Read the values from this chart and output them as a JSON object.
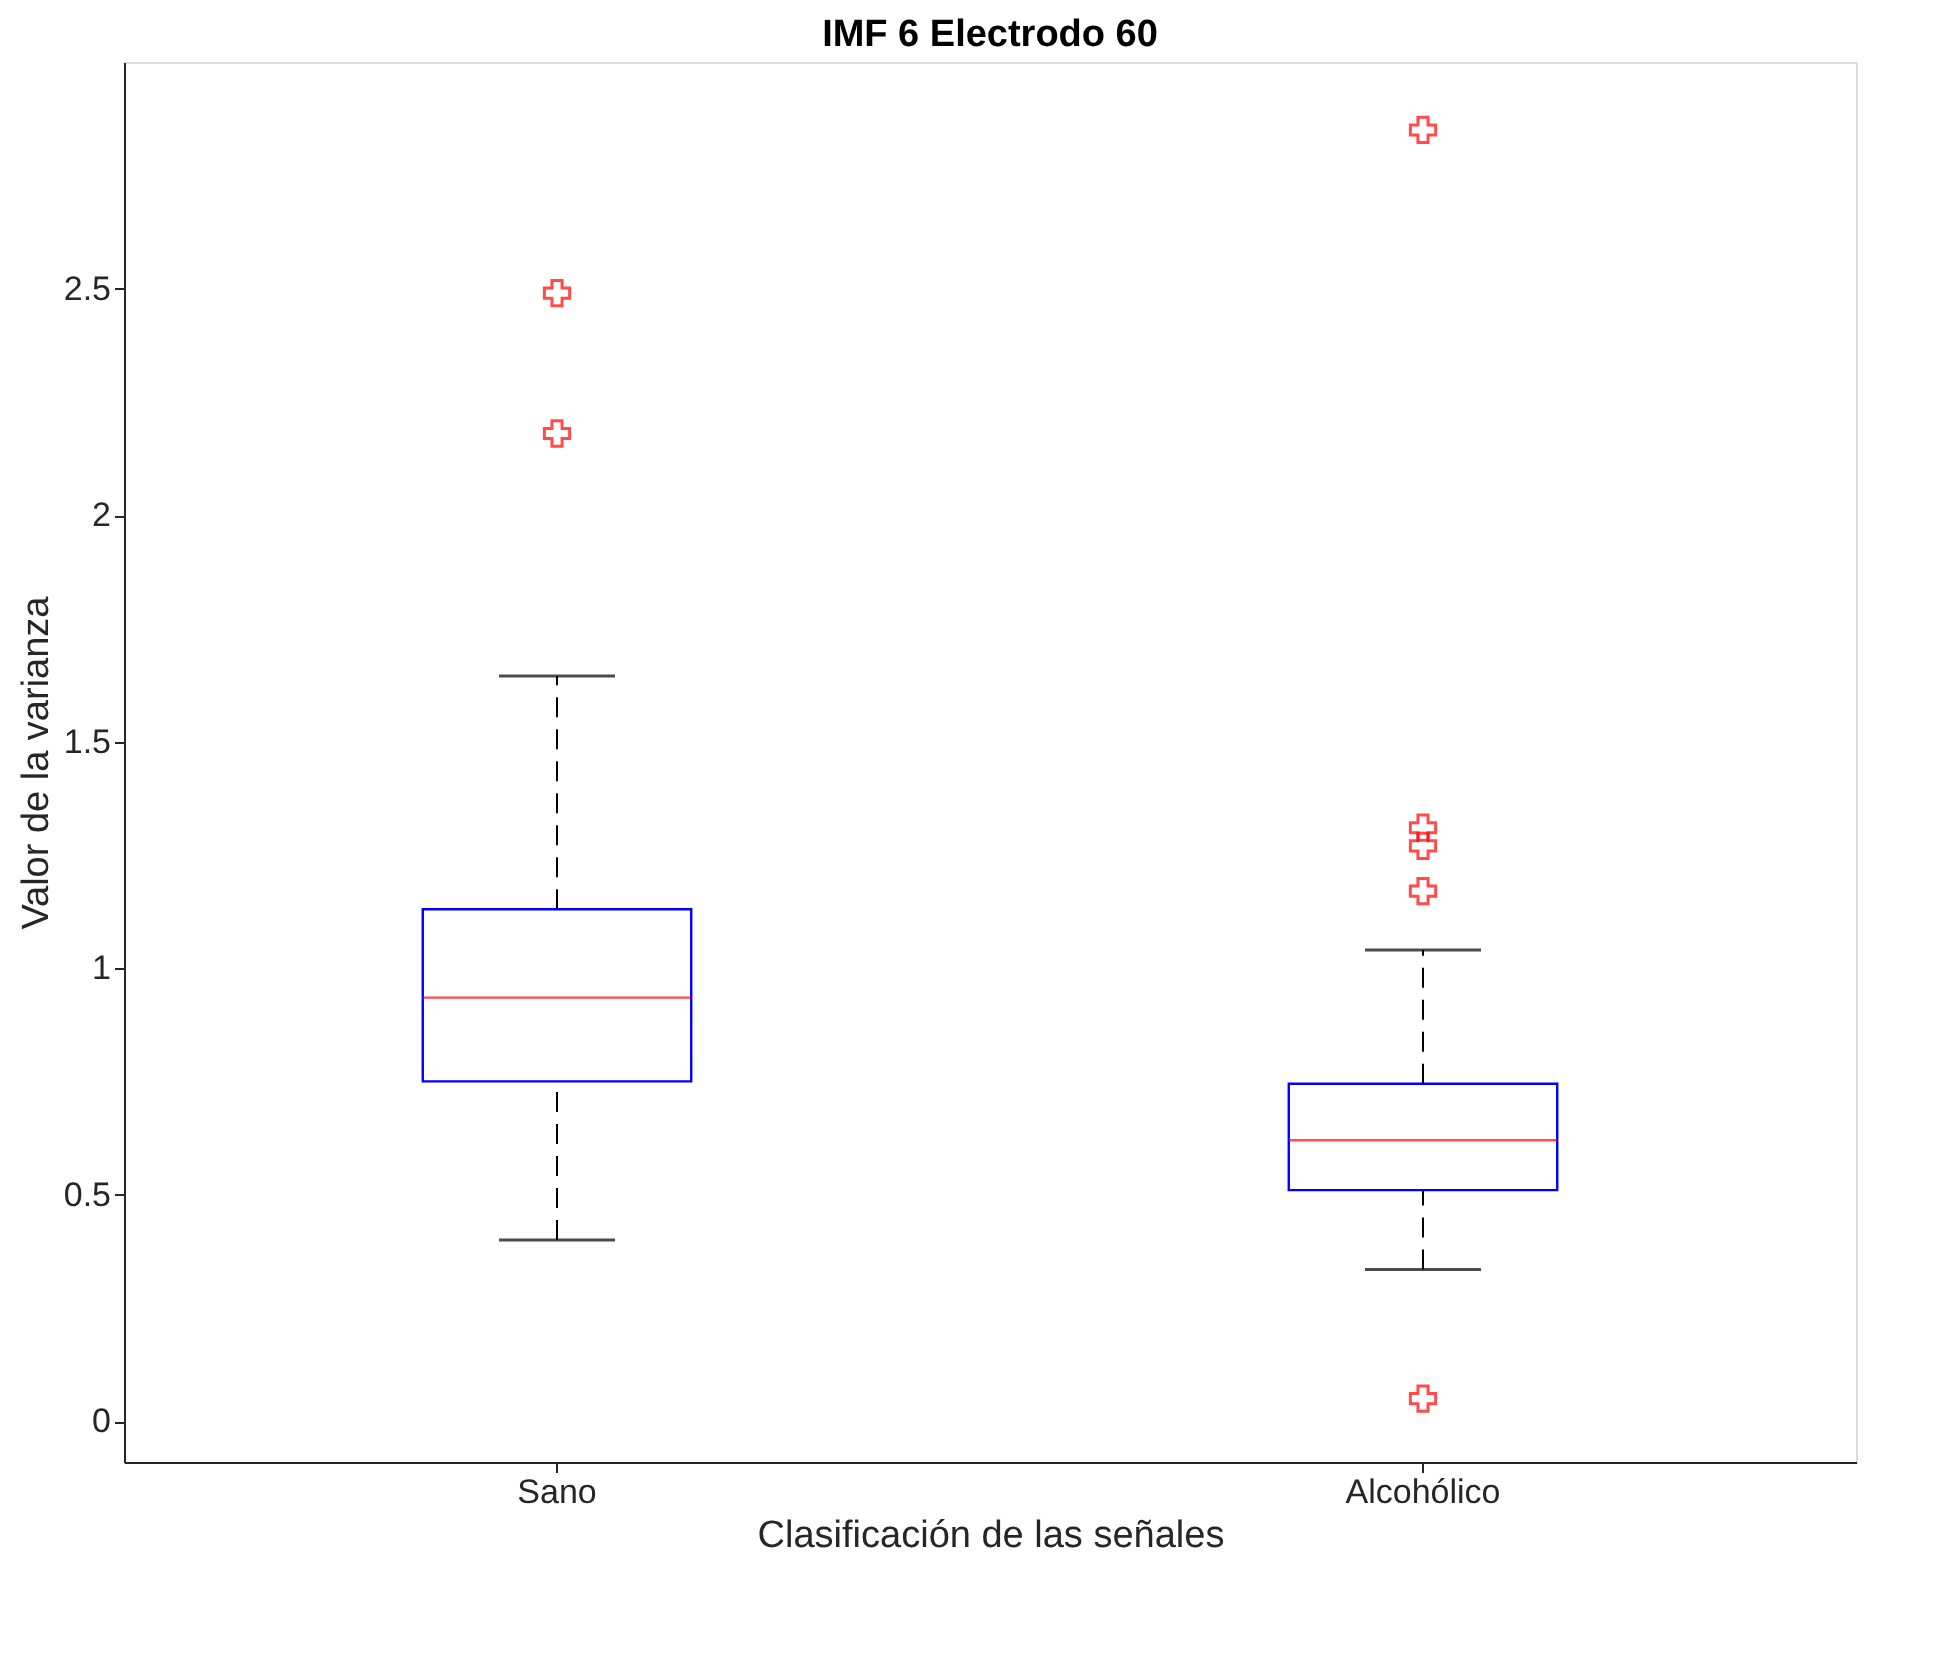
{
  "chart_data": {
    "type": "box",
    "title": "IMF 6 Electrodo 60",
    "xlabel": "Clasificación de las señales",
    "ylabel": "Valor de la varianza",
    "categories": [
      "Sano",
      "Alcohólico"
    ],
    "boxes": [
      {
        "low": 0.4,
        "q1": 0.75,
        "median": 0.935,
        "q3": 1.13,
        "high": 1.645,
        "outliers": [
          2.49,
          2.18
        ]
      },
      {
        "low": 0.335,
        "q1": 0.51,
        "median": 0.62,
        "q3": 0.745,
        "high": 1.04,
        "outliers": [
          2.85,
          1.31,
          1.27,
          1.17,
          0.05
        ]
      }
    ],
    "ylim": [
      -0.09,
      3.0
    ],
    "yticks": [
      0,
      0.5,
      1,
      1.5,
      2,
      2.5
    ],
    "grid": false
  }
}
